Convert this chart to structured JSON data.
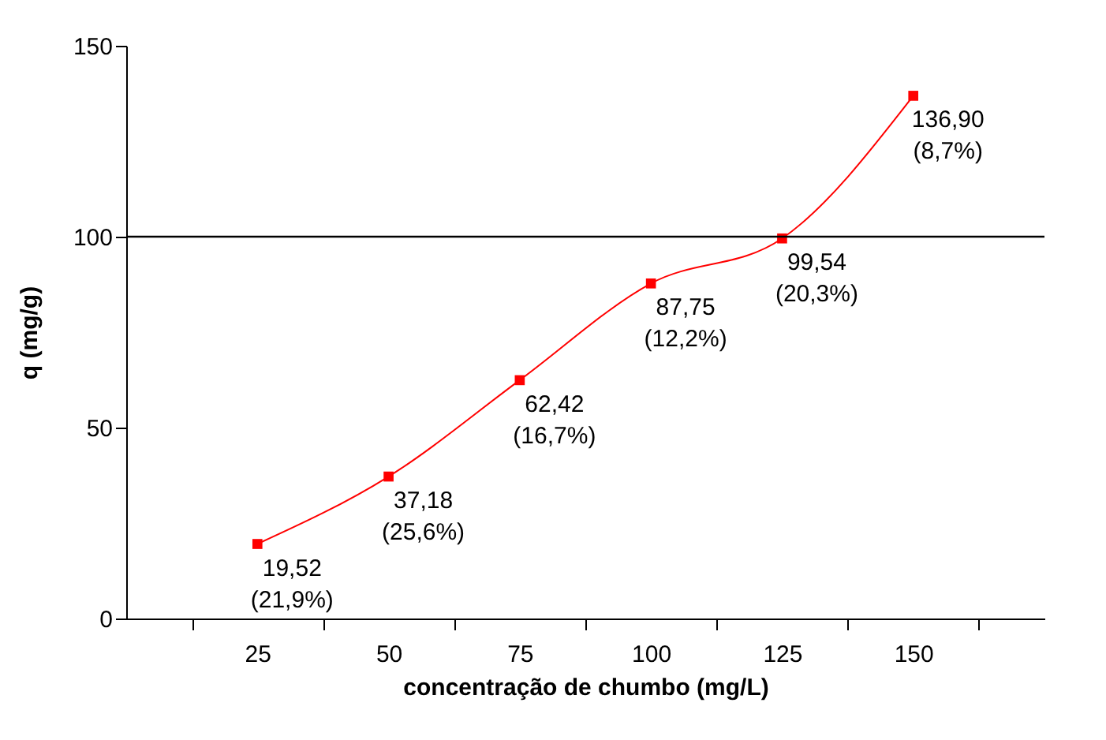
{
  "chart_data": {
    "type": "line",
    "xlabel": "concentração de chumbo (mg/L)",
    "ylabel": "q (mg/g)",
    "categories": [
      "25",
      "50",
      "75",
      "100",
      "125",
      "150"
    ],
    "series": [
      {
        "color": "#ff0000",
        "values": [
          19.52,
          37.18,
          62.42,
          87.75,
          99.54,
          136.9
        ],
        "value_labels": [
          "19,52\n(21,9%)",
          "37,18\n(25,6%)",
          "62,42\n(16,7%)",
          "87,75\n(12,2%)",
          "99,54\n(20,3%)",
          "136,90\n(8,7%)"
        ]
      }
    ],
    "ylim": [
      0,
      150
    ],
    "yticks": [
      0,
      50,
      100,
      150
    ],
    "ref_lines": [
      {
        "axis": "y",
        "value": 100,
        "color": "#000000"
      }
    ],
    "marker": "square",
    "line_style": "solid"
  }
}
